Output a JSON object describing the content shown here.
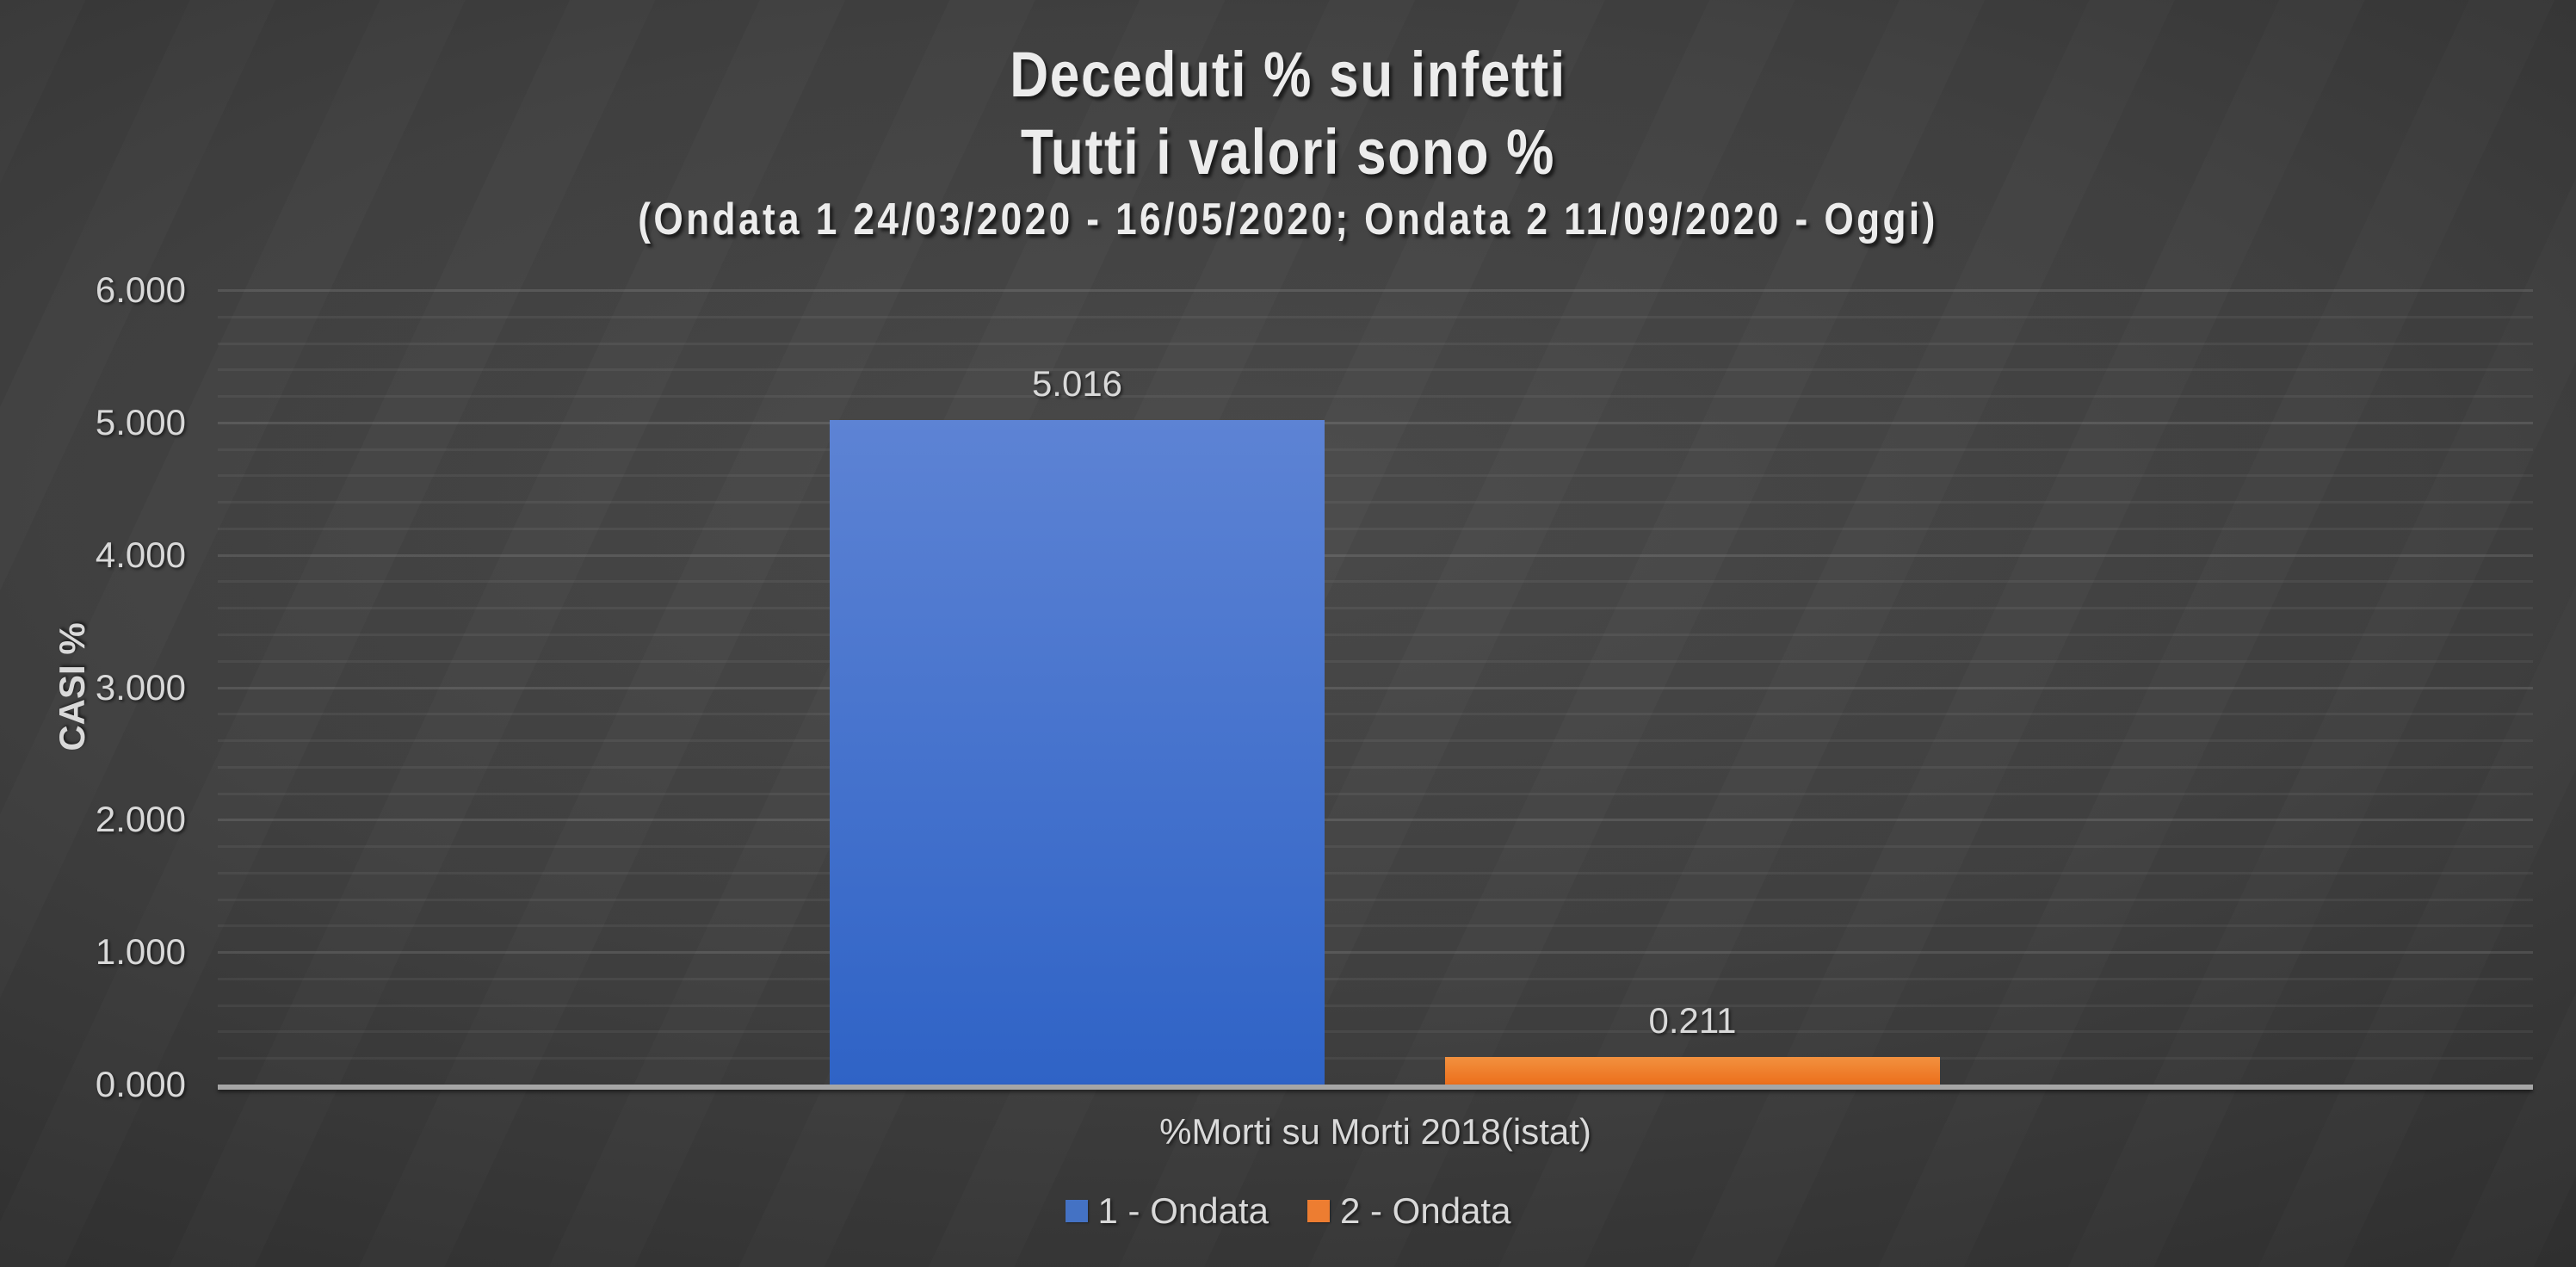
{
  "chart_data": {
    "type": "bar",
    "title": "Deceduti % su infetti",
    "subtitle": "Tutti i valori sono %",
    "subtitle2": "(Ondata 1 24/03/2020 - 16/05/2020; Ondata 2 11/09/2020 - Oggi)",
    "categories": [
      "%Morti su Morti 2018(istat)"
    ],
    "series": [
      {
        "name": "1 - Ondata",
        "values": [
          5.016
        ],
        "color_top": "#5d83d4",
        "color_bottom": "#2f63c6",
        "legend_color": "#4472c4"
      },
      {
        "name": "2 - Ondata",
        "values": [
          0.211
        ],
        "color_top": "#f2913f",
        "color_bottom": "#ec6f1c",
        "legend_color": "#ed7d31"
      }
    ],
    "data_labels": [
      "5.016",
      "0.211"
    ],
    "xlabel": "",
    "ylabel": "CASI %",
    "ylim": [
      0,
      6
    ],
    "y_major_step": 1,
    "y_minor_step": 0.2,
    "y_tick_labels": [
      "0.000",
      "1.000",
      "2.000",
      "3.000",
      "4.000",
      "5.000",
      "6.000"
    ],
    "grid": true,
    "legend_position": "bottom"
  },
  "colors": {
    "title": "#ececec",
    "text": "#d9d9d9",
    "grid_minor": "rgba(255,255,255,0.055)",
    "grid_major": "rgba(255,255,255,0.115)",
    "axis_line": "#a6a6a6",
    "background_center": "#4b4b4b",
    "background_edge": "#242424"
  }
}
